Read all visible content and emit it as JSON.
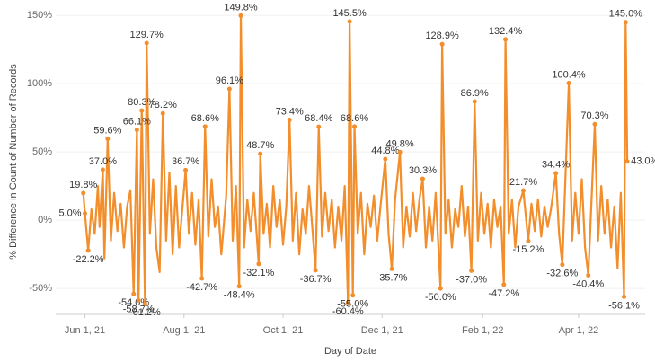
{
  "chart_data": {
    "type": "line",
    "x_label": "Day of Date",
    "y_label": "% Difference in Count of Number of Records",
    "color": "#f28e2b",
    "grid": true,
    "xlim": [
      "2021-05-14",
      "2022-05-12"
    ],
    "xticks": [
      {
        "value": "2021-06-01",
        "label": "Jun 1, 21"
      },
      {
        "value": "2021-08-01",
        "label": "Aug 1, 21"
      },
      {
        "value": "2021-10-01",
        "label": "Oct 1, 21"
      },
      {
        "value": "2021-12-01",
        "label": "Dec 1, 21"
      },
      {
        "value": "2022-02-01",
        "label": "Feb 1, 22"
      },
      {
        "value": "2022-04-01",
        "label": "Apr 1, 22"
      }
    ],
    "ylim": [
      -69,
      156
    ],
    "yticks": [
      {
        "value": -50,
        "label": "-50%"
      },
      {
        "value": 0,
        "label": "0%"
      },
      {
        "value": 50,
        "label": "50%"
      },
      {
        "value": 100,
        "label": "100%"
      },
      {
        "value": 150,
        "label": "150%"
      }
    ],
    "x": [
      "2021-05-31",
      "2021-06-01",
      "2021-06-03",
      "2021-06-05",
      "2021-06-07",
      "2021-06-09",
      "2021-06-10",
      "2021-06-12",
      "2021-06-13",
      "2021-06-15",
      "2021-06-17",
      "2021-06-19",
      "2021-06-21",
      "2021-06-23",
      "2021-06-25",
      "2021-06-27",
      "2021-06-29",
      "2021-07-01",
      "2021-07-03",
      "2021-07-04",
      "2021-07-06",
      "2021-07-08",
      "2021-07-09",
      "2021-07-11",
      "2021-07-13",
      "2021-07-15",
      "2021-07-17",
      "2021-07-19",
      "2021-07-21",
      "2021-07-23",
      "2021-07-25",
      "2021-07-27",
      "2021-07-29",
      "2021-08-02",
      "2021-08-04",
      "2021-08-06",
      "2021-08-08",
      "2021-08-10",
      "2021-08-12",
      "2021-08-14",
      "2021-08-16",
      "2021-08-18",
      "2021-08-20",
      "2021-08-22",
      "2021-08-24",
      "2021-08-27",
      "2021-08-29",
      "2021-08-31",
      "2021-09-02",
      "2021-09-04",
      "2021-09-05",
      "2021-09-07",
      "2021-09-09",
      "2021-09-11",
      "2021-09-13",
      "2021-09-16",
      "2021-09-17",
      "2021-09-19",
      "2021-09-21",
      "2021-09-23",
      "2021-09-25",
      "2021-09-27",
      "2021-09-29",
      "2021-10-01",
      "2021-10-03",
      "2021-10-05",
      "2021-10-07",
      "2021-10-09",
      "2021-10-11",
      "2021-10-13",
      "2021-10-15",
      "2021-10-17",
      "2021-10-19",
      "2021-10-21",
      "2021-10-23",
      "2021-10-25",
      "2021-10-27",
      "2021-10-29",
      "2021-10-31",
      "2021-11-02",
      "2021-11-04",
      "2021-11-06",
      "2021-11-08",
      "2021-11-10",
      "2021-11-11",
      "2021-11-13",
      "2021-11-14",
      "2021-11-16",
      "2021-11-18",
      "2021-11-20",
      "2021-11-22",
      "2021-11-24",
      "2021-11-26",
      "2021-11-28",
      "2021-11-30",
      "2021-12-03",
      "2021-12-05",
      "2021-12-07",
      "2021-12-09",
      "2021-12-12",
      "2021-12-14",
      "2021-12-16",
      "2021-12-18",
      "2021-12-20",
      "2021-12-22",
      "2021-12-24",
      "2021-12-26",
      "2021-12-28",
      "2021-12-30",
      "2022-01-01",
      "2022-01-03",
      "2022-01-06",
      "2022-01-07",
      "2022-01-09",
      "2022-01-11",
      "2022-01-13",
      "2022-01-15",
      "2022-01-17",
      "2022-01-19",
      "2022-01-21",
      "2022-01-23",
      "2022-01-25",
      "2022-01-27",
      "2022-01-29",
      "2022-01-31",
      "2022-02-02",
      "2022-02-04",
      "2022-02-06",
      "2022-02-08",
      "2022-02-10",
      "2022-02-12",
      "2022-02-14",
      "2022-02-15",
      "2022-02-17",
      "2022-02-19",
      "2022-02-21",
      "2022-02-23",
      "2022-02-26",
      "2022-03-01",
      "2022-03-03",
      "2022-03-05",
      "2022-03-07",
      "2022-03-09",
      "2022-03-11",
      "2022-03-13",
      "2022-03-15",
      "2022-03-18",
      "2022-03-20",
      "2022-03-22",
      "2022-03-26",
      "2022-03-28",
      "2022-03-30",
      "2022-04-01",
      "2022-04-03",
      "2022-04-05",
      "2022-04-07",
      "2022-04-09",
      "2022-04-11",
      "2022-04-13",
      "2022-04-15",
      "2022-04-17",
      "2022-04-19",
      "2022-04-21",
      "2022-04-23",
      "2022-04-25",
      "2022-04-27",
      "2022-04-29",
      "2022-04-30",
      "2022-05-01"
    ],
    "values": [
      19.8,
      5.0,
      -22.2,
      8,
      -10,
      25,
      -5,
      37.0,
      -28,
      59.6,
      -15,
      20,
      -8,
      12,
      -20,
      10,
      22,
      -54.0,
      66.1,
      -58.7,
      80.3,
      -61.2,
      129.7,
      -10,
      30,
      -20,
      -38,
      78.2,
      -15,
      35,
      -25,
      25,
      -20,
      36.7,
      -10,
      20,
      -18,
      15,
      -42.7,
      68.6,
      -12,
      30,
      -5,
      10,
      -25,
      18,
      96.1,
      -15,
      25,
      -48.4,
      149.8,
      -20,
      15,
      -8,
      20,
      -32.1,
      48.7,
      -10,
      12,
      -20,
      25,
      -5,
      15,
      -18,
      10,
      73.4,
      -15,
      20,
      -25,
      8,
      -10,
      25,
      -5,
      -36.7,
      68.4,
      -12,
      20,
      -8,
      15,
      -20,
      10,
      -15,
      25,
      -60.4,
      145.5,
      -55.0,
      68.6,
      -10,
      20,
      -25,
      12,
      -5,
      18,
      -15,
      10,
      44.8,
      -10,
      -35.7,
      15,
      49.8,
      -20,
      10,
      -12,
      20,
      -8,
      15,
      30.3,
      -20,
      10,
      -15,
      20,
      -50.0,
      128.9,
      -10,
      15,
      -20,
      8,
      -5,
      25,
      -12,
      10,
      -37.0,
      86.9,
      -15,
      20,
      -10,
      12,
      -20,
      15,
      -5,
      10,
      -47.2,
      132.4,
      -10,
      15,
      -20,
      10,
      21.7,
      -15.2,
      12,
      -8,
      15,
      -12,
      10,
      -5,
      8,
      34.4,
      -10,
      -32.6,
      100.4,
      -15,
      20,
      -10,
      30,
      -20,
      -40.4,
      15,
      70.3,
      -15,
      25,
      -10,
      15,
      -20,
      10,
      -35,
      20,
      -56.1,
      145.0,
      43.0
    ],
    "value_labels": [
      "19.8%",
      "5.0%",
      "-22.2%",
      null,
      null,
      null,
      null,
      "37.0%",
      null,
      "59.6%",
      null,
      null,
      null,
      null,
      null,
      null,
      null,
      "-54.0%",
      "66.1%",
      "-58.7%",
      "80.3%",
      "-61.2%",
      "129.7%",
      null,
      null,
      null,
      null,
      "78.2%",
      null,
      null,
      null,
      null,
      null,
      "36.7%",
      null,
      null,
      null,
      null,
      "-42.7%",
      "68.6%",
      null,
      null,
      null,
      null,
      null,
      null,
      "96.1%",
      null,
      null,
      "-48.4%",
      "149.8%",
      null,
      null,
      null,
      null,
      "-32.1%",
      "48.7%",
      null,
      null,
      null,
      null,
      null,
      null,
      null,
      null,
      "73.4%",
      null,
      null,
      null,
      null,
      null,
      null,
      null,
      "-36.7%",
      "68.4%",
      null,
      null,
      null,
      null,
      null,
      null,
      null,
      null,
      "-60.4%",
      "145.5%",
      "-55.0%",
      "68.6%",
      null,
      null,
      null,
      null,
      null,
      null,
      null,
      null,
      "44.8%",
      null,
      "-35.7%",
      null,
      "49.8%",
      null,
      null,
      null,
      null,
      null,
      null,
      "30.3%",
      null,
      null,
      null,
      null,
      "-50.0%",
      "128.9%",
      null,
      null,
      null,
      null,
      null,
      null,
      null,
      null,
      "-37.0%",
      "86.9%",
      null,
      null,
      null,
      null,
      null,
      null,
      null,
      null,
      "-47.2%",
      "132.4%",
      null,
      null,
      null,
      null,
      "21.7%",
      "-15.2%",
      null,
      null,
      null,
      null,
      null,
      null,
      null,
      "34.4%",
      null,
      "-32.6%",
      "100.4%",
      null,
      null,
      null,
      null,
      null,
      "-40.4%",
      null,
      "70.3%",
      null,
      null,
      null,
      null,
      null,
      null,
      null,
      null,
      "-56.1%",
      "145.0%",
      "43.0%"
    ]
  }
}
